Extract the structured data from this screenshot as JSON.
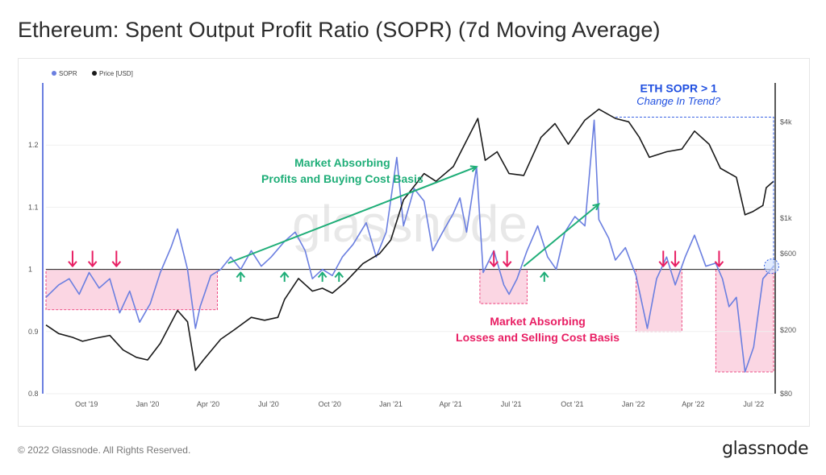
{
  "title": "Ethereum: Spent Output Profit Ratio (SOPR) (7d Moving Average)",
  "footer": "© 2022 Glassnode. All Rights Reserved.",
  "brand": "glassnode",
  "watermark": "glassnode",
  "colors": {
    "sopr": "#6b7fe0",
    "price": "#1a1a1a",
    "green": "#1fae78",
    "pink": "#e81e63",
    "pink_fill": "#f9c8da",
    "blue_note": "#1f4fe0"
  },
  "chart_data": {
    "type": "line",
    "legend": [
      {
        "name": "SOPR",
        "color": "#6b7fe0"
      },
      {
        "name": "Price [USD]",
        "color": "#1a1a1a"
      }
    ],
    "x_ticks": [
      "Oct '19",
      "Jan '20",
      "Apr '20",
      "Jul '20",
      "Oct '20",
      "Jan '21",
      "Apr '21",
      "Jul '21",
      "Oct '21",
      "Jan '22",
      "Apr '22",
      "Jul '22"
    ],
    "x_range": [
      "2019-08-01",
      "2022-07-31"
    ],
    "y_left": {
      "ticks": [
        "0.8",
        "0.9",
        "1",
        "1.1",
        "1.2"
      ],
      "range": [
        0.8,
        1.3
      ],
      "scale": "linear"
    },
    "y_right": {
      "ticks": [
        "$80",
        "$200",
        "$600",
        "$1k",
        "$4k"
      ],
      "range": [
        80,
        7000
      ],
      "scale": "log"
    },
    "baseline": 1,
    "grid": true,
    "series": [
      {
        "name": "SOPR",
        "axis": "left",
        "points": [
          [
            "2019-08-01",
            0.955
          ],
          [
            "2019-08-20",
            0.975
          ],
          [
            "2019-09-05",
            0.985
          ],
          [
            "2019-09-20",
            0.96
          ],
          [
            "2019-10-05",
            0.995
          ],
          [
            "2019-10-20",
            0.97
          ],
          [
            "2019-11-05",
            0.985
          ],
          [
            "2019-11-20",
            0.93
          ],
          [
            "2019-12-05",
            0.965
          ],
          [
            "2019-12-20",
            0.915
          ],
          [
            "2020-01-05",
            0.945
          ],
          [
            "2020-01-20",
            0.995
          ],
          [
            "2020-02-05",
            1.035
          ],
          [
            "2020-02-15",
            1.065
          ],
          [
            "2020-03-01",
            1.0
          ],
          [
            "2020-03-13",
            0.905
          ],
          [
            "2020-03-20",
            0.94
          ],
          [
            "2020-04-05",
            0.99
          ],
          [
            "2020-04-20",
            1.0
          ],
          [
            "2020-05-05",
            1.02
          ],
          [
            "2020-05-20",
            1.0
          ],
          [
            "2020-06-05",
            1.03
          ],
          [
            "2020-06-20",
            1.005
          ],
          [
            "2020-07-05",
            1.02
          ],
          [
            "2020-07-25",
            1.045
          ],
          [
            "2020-08-10",
            1.06
          ],
          [
            "2020-08-25",
            1.03
          ],
          [
            "2020-09-05",
            0.985
          ],
          [
            "2020-09-20",
            1.0
          ],
          [
            "2020-10-05",
            0.99
          ],
          [
            "2020-10-20",
            1.02
          ],
          [
            "2020-11-05",
            1.04
          ],
          [
            "2020-11-25",
            1.075
          ],
          [
            "2020-12-10",
            1.02
          ],
          [
            "2020-12-25",
            1.06
          ],
          [
            "2021-01-10",
            1.18
          ],
          [
            "2021-01-20",
            1.07
          ],
          [
            "2021-02-05",
            1.13
          ],
          [
            "2021-02-20",
            1.11
          ],
          [
            "2021-03-05",
            1.03
          ],
          [
            "2021-03-20",
            1.06
          ],
          [
            "2021-04-05",
            1.09
          ],
          [
            "2021-04-15",
            1.115
          ],
          [
            "2021-04-25",
            1.06
          ],
          [
            "2021-05-10",
            1.165
          ],
          [
            "2021-05-20",
            0.995
          ],
          [
            "2021-06-05",
            1.03
          ],
          [
            "2021-06-20",
            0.975
          ],
          [
            "2021-06-28",
            0.96
          ],
          [
            "2021-07-10",
            0.985
          ],
          [
            "2021-07-25",
            1.03
          ],
          [
            "2021-08-10",
            1.07
          ],
          [
            "2021-08-25",
            1.02
          ],
          [
            "2021-09-07",
            1.0
          ],
          [
            "2021-09-20",
            1.06
          ],
          [
            "2021-10-05",
            1.085
          ],
          [
            "2021-10-20",
            1.07
          ],
          [
            "2021-11-03",
            1.24
          ],
          [
            "2021-11-10",
            1.08
          ],
          [
            "2021-11-25",
            1.05
          ],
          [
            "2021-12-05",
            1.015
          ],
          [
            "2021-12-20",
            1.035
          ],
          [
            "2022-01-05",
            0.99
          ],
          [
            "2022-01-22",
            0.905
          ],
          [
            "2022-02-05",
            0.985
          ],
          [
            "2022-02-20",
            1.02
          ],
          [
            "2022-03-05",
            0.975
          ],
          [
            "2022-03-20",
            1.02
          ],
          [
            "2022-04-03",
            1.055
          ],
          [
            "2022-04-20",
            1.005
          ],
          [
            "2022-05-05",
            1.01
          ],
          [
            "2022-05-15",
            0.985
          ],
          [
            "2022-05-25",
            0.94
          ],
          [
            "2022-06-05",
            0.955
          ],
          [
            "2022-06-18",
            0.835
          ],
          [
            "2022-07-01",
            0.875
          ],
          [
            "2022-07-15",
            0.985
          ],
          [
            "2022-07-31",
            1.005
          ]
        ]
      },
      {
        "name": "Price [USD]",
        "axis": "right",
        "points": [
          [
            "2019-08-01",
            215
          ],
          [
            "2019-08-20",
            190
          ],
          [
            "2019-09-10",
            180
          ],
          [
            "2019-09-25",
            170
          ],
          [
            "2019-10-15",
            178
          ],
          [
            "2019-11-05",
            185
          ],
          [
            "2019-11-25",
            150
          ],
          [
            "2019-12-15",
            135
          ],
          [
            "2020-01-01",
            130
          ],
          [
            "2020-01-20",
            165
          ],
          [
            "2020-02-15",
            265
          ],
          [
            "2020-03-01",
            225
          ],
          [
            "2020-03-13",
            112
          ],
          [
            "2020-03-25",
            130
          ],
          [
            "2020-04-20",
            175
          ],
          [
            "2020-05-10",
            200
          ],
          [
            "2020-06-05",
            240
          ],
          [
            "2020-06-25",
            230
          ],
          [
            "2020-07-15",
            240
          ],
          [
            "2020-07-25",
            310
          ],
          [
            "2020-08-15",
            420
          ],
          [
            "2020-09-05",
            350
          ],
          [
            "2020-09-20",
            365
          ],
          [
            "2020-10-05",
            340
          ],
          [
            "2020-10-25",
            400
          ],
          [
            "2020-11-20",
            520
          ],
          [
            "2020-12-15",
            600
          ],
          [
            "2021-01-01",
            730
          ],
          [
            "2021-01-20",
            1300
          ],
          [
            "2021-02-20",
            1900
          ],
          [
            "2021-03-10",
            1700
          ],
          [
            "2021-04-05",
            2100
          ],
          [
            "2021-05-12",
            4200
          ],
          [
            "2021-05-23",
            2300
          ],
          [
            "2021-06-10",
            2600
          ],
          [
            "2021-06-28",
            1900
          ],
          [
            "2021-07-20",
            1850
          ],
          [
            "2021-08-15",
            3200
          ],
          [
            "2021-09-05",
            3900
          ],
          [
            "2021-09-25",
            2900
          ],
          [
            "2021-10-20",
            4100
          ],
          [
            "2021-11-10",
            4800
          ],
          [
            "2021-12-05",
            4200
          ],
          [
            "2021-12-25",
            4000
          ],
          [
            "2022-01-10",
            3200
          ],
          [
            "2022-01-25",
            2400
          ],
          [
            "2022-02-20",
            2600
          ],
          [
            "2022-03-15",
            2700
          ],
          [
            "2022-04-03",
            3500
          ],
          [
            "2022-04-25",
            2900
          ],
          [
            "2022-05-12",
            2050
          ],
          [
            "2022-06-05",
            1800
          ],
          [
            "2022-06-18",
            1050
          ],
          [
            "2022-06-30",
            1100
          ],
          [
            "2022-07-15",
            1200
          ],
          [
            "2022-07-20",
            1550
          ],
          [
            "2022-07-31",
            1700
          ]
        ]
      }
    ],
    "annotations": {
      "green_title": [
        "Market Absorbing",
        "Profits and Buying Cost Basis"
      ],
      "pink_title": [
        "Market Absorbing",
        "Losses and Selling Cost Basis"
      ],
      "blue_title": "ETH SOPR > 1",
      "blue_subtitle": "Change In Trend?",
      "pink_regions": [
        [
          "2019-08-01",
          "2020-04-15"
        ],
        [
          "2021-05-15",
          "2021-07-25"
        ],
        [
          "2022-01-05",
          "2022-03-15"
        ],
        [
          "2022-05-05",
          "2022-07-31"
        ]
      ],
      "pink_arrows": [
        "2019-09-10",
        "2019-10-10",
        "2019-11-15",
        "2021-06-05",
        "2021-06-25",
        "2022-02-15",
        "2022-03-05",
        "2022-05-10"
      ],
      "green_arrows": [
        "2020-05-20",
        "2020-07-25",
        "2020-09-20",
        "2020-10-15",
        "2021-08-20"
      ]
    }
  }
}
